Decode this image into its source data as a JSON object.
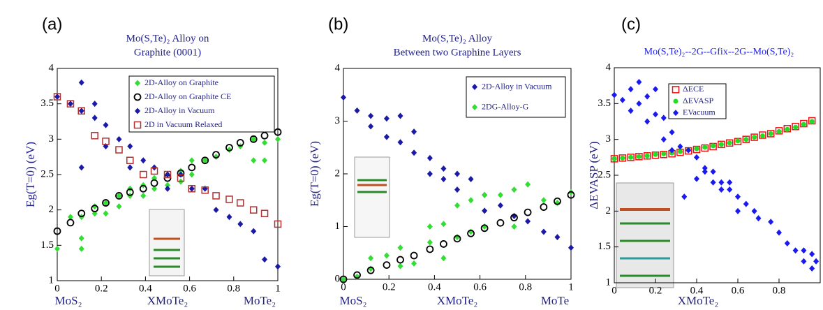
{
  "chart_data": [
    {
      "type": "scatter",
      "panel_label": "(a)",
      "title": [
        "Mo(S,Te)₂ Alloy on",
        "Graphite (0001)"
      ],
      "x_label": "XMoTe₂",
      "y_label": "Eg(T=0) (eV)",
      "x_end_labels": [
        "MoS₂",
        "MoTe₂"
      ],
      "xlim": [
        0,
        1
      ],
      "ylim": [
        1,
        4
      ],
      "xticks": [
        0,
        0.2,
        0.4,
        0.6,
        0.8,
        1
      ],
      "yticks": [
        1,
        1.5,
        2,
        2.5,
        3,
        3.5,
        4
      ],
      "series": [
        {
          "name": "2D-Alloy on Graphite",
          "color": "#33dd33",
          "marker": "diamond",
          "x": [
            0,
            0.06,
            0.11,
            0.11,
            0.11,
            0.17,
            0.17,
            0.22,
            0.22,
            0.28,
            0.28,
            0.33,
            0.33,
            0.39,
            0.39,
            0.44,
            0.44,
            0.5,
            0.5,
            0.56,
            0.56,
            0.61,
            0.61,
            0.67,
            0.72,
            0.78,
            0.83,
            0.89,
            0.89,
            0.94,
            0.94,
            1
          ],
          "y": [
            1.45,
            1.9,
            1.45,
            1.6,
            1.9,
            1.95,
            2.05,
            2.1,
            1.95,
            2.05,
            2.2,
            2.2,
            2.3,
            2.2,
            2.35,
            2.3,
            2.45,
            2.35,
            2.5,
            2.4,
            2.55,
            2.5,
            2.7,
            2.7,
            2.75,
            2.85,
            2.9,
            3.0,
            2.7,
            2.95,
            2.7,
            3.0
          ]
        },
        {
          "name": "2D-Alloy on Graphite CE",
          "color": "#000000",
          "marker": "circle_open",
          "x": [
            0,
            0.06,
            0.11,
            0.17,
            0.22,
            0.28,
            0.33,
            0.39,
            0.44,
            0.5,
            0.56,
            0.61,
            0.67,
            0.72,
            0.78,
            0.83,
            0.89,
            0.94,
            1
          ],
          "y": [
            1.7,
            1.82,
            1.95,
            2.02,
            2.1,
            2.2,
            2.25,
            2.3,
            2.38,
            2.45,
            2.52,
            2.6,
            2.7,
            2.78,
            2.88,
            2.95,
            3.0,
            3.05,
            3.1
          ]
        },
        {
          "name": "2D-Alloy in Vacuum",
          "color": "#1a1aa6",
          "marker": "diamond",
          "x": [
            0,
            0.06,
            0.11,
            0.11,
            0.11,
            0.17,
            0.17,
            0.22,
            0.22,
            0.28,
            0.33,
            0.33,
            0.39,
            0.44,
            0.5,
            0.5,
            0.56,
            0.61,
            0.67,
            0.72,
            0.78,
            0.83,
            0.89,
            0.94,
            1
          ],
          "y": [
            3.6,
            3.5,
            3.8,
            3.4,
            2.6,
            3.5,
            3.3,
            3.2,
            2.9,
            3.0,
            2.9,
            2.6,
            2.7,
            2.6,
            2.5,
            2.3,
            2.5,
            2.3,
            2.3,
            2.0,
            1.9,
            1.8,
            1.7,
            1.3,
            1.2
          ]
        },
        {
          "name": "2D in Vacuum Relaxed",
          "color": "#b03030",
          "marker": "square_open",
          "x": [
            0,
            0.06,
            0.11,
            0.17,
            0.22,
            0.28,
            0.33,
            0.39,
            0.44,
            0.5,
            0.56,
            0.61,
            0.67,
            0.72,
            0.78,
            0.83,
            0.89,
            0.94,
            1
          ],
          "y": [
            3.6,
            3.5,
            3.4,
            3.05,
            2.97,
            2.85,
            2.7,
            2.5,
            2.55,
            2.5,
            2.45,
            2.3,
            2.28,
            2.2,
            2.15,
            2.1,
            2.0,
            1.95,
            1.8
          ]
        }
      ]
    },
    {
      "type": "scatter",
      "panel_label": "(b)",
      "title": [
        "Mo(S,Te)₂ Alloy",
        "Between two Graphine Layers"
      ],
      "x_label": "XMoTe₂",
      "y_label": "Eg(T=0) (eV)",
      "x_end_labels": [
        "MoS₂",
        "MoTe"
      ],
      "xlim": [
        0,
        1
      ],
      "ylim": [
        0,
        4
      ],
      "xticks": [
        0,
        0.2,
        0.4,
        0.6,
        0.8,
        1
      ],
      "yticks": [
        0,
        1,
        2,
        3,
        4
      ],
      "series": [
        {
          "name": "2D-Alloy in Vacuum",
          "color": "#1a1aa6",
          "marker": "diamond",
          "x": [
            0,
            0.06,
            0.12,
            0.12,
            0.19,
            0.19,
            0.25,
            0.25,
            0.31,
            0.31,
            0.38,
            0.38,
            0.44,
            0.44,
            0.5,
            0.5,
            0.56,
            0.62,
            0.62,
            0.69,
            0.75,
            0.81,
            0.88,
            0.94,
            1
          ],
          "y": [
            3.45,
            3.2,
            3.1,
            2.9,
            3.05,
            2.7,
            3.1,
            2.6,
            2.4,
            2.8,
            2.3,
            2.0,
            2.1,
            1.9,
            1.7,
            2.0,
            1.9,
            1.6,
            1.3,
            1.4,
            1.2,
            1.1,
            0.9,
            0.8,
            0.6
          ]
        },
        {
          "name": "2DG-Alloy-G",
          "color": "#33dd33",
          "marker": "diamond",
          "x": [
            0,
            0.06,
            0.12,
            0.12,
            0.19,
            0.25,
            0.25,
            0.31,
            0.38,
            0.38,
            0.44,
            0.44,
            0.5,
            0.5,
            0.56,
            0.56,
            0.62,
            0.62,
            0.69,
            0.75,
            0.75,
            0.81,
            0.88,
            0.94,
            1
          ],
          "y": [
            0,
            0.05,
            0.4,
            0.2,
            0.45,
            0.6,
            0.25,
            0.3,
            0.7,
            1.0,
            0.4,
            1.05,
            0.8,
            1.4,
            1.5,
            0.9,
            1.0,
            1.6,
            1.6,
            1.7,
            1.0,
            1.8,
            1.5,
            1.45,
            1.65
          ]
        },
        {
          "color": "#000000",
          "marker": "circle_open",
          "x": [
            0,
            0.06,
            0.12,
            0.19,
            0.25,
            0.31,
            0.38,
            0.44,
            0.5,
            0.56,
            0.62,
            0.69,
            0.75,
            0.81,
            0.88,
            0.94,
            1
          ],
          "y": [
            0,
            0.08,
            0.17,
            0.27,
            0.37,
            0.45,
            0.57,
            0.67,
            0.77,
            0.87,
            0.97,
            1.07,
            1.17,
            1.27,
            1.37,
            1.48,
            1.6
          ]
        }
      ]
    },
    {
      "type": "scatter",
      "panel_label": "(c)",
      "title": [
        "Mo(S,Te)₂--2G--Gfix--2G--Mo(S,Te)₂"
      ],
      "x_label": "XMoTe₂",
      "y_label": "ΔEVASP (eV)",
      "xlim": [
        0,
        1
      ],
      "ylim": [
        1,
        4
      ],
      "xticks": [
        0,
        0.2,
        0.4,
        0.6,
        0.8
      ],
      "yticks": [
        1,
        1.5,
        2,
        2.5,
        3,
        3.5,
        4
      ],
      "series": [
        {
          "name": "ΔECE",
          "color": "#ee1111",
          "marker": "square_open",
          "x": [
            0,
            0.04,
            0.08,
            0.12,
            0.16,
            0.2,
            0.24,
            0.28,
            0.32,
            0.36,
            0.4,
            0.44,
            0.48,
            0.52,
            0.56,
            0.6,
            0.64,
            0.68,
            0.72,
            0.76,
            0.8,
            0.84,
            0.88,
            0.92,
            0.96
          ],
          "y": [
            2.73,
            2.74,
            2.75,
            2.76,
            2.77,
            2.78,
            2.79,
            2.8,
            2.82,
            2.84,
            2.86,
            2.88,
            2.9,
            2.93,
            2.95,
            2.97,
            3.0,
            3.03,
            3.06,
            3.08,
            3.12,
            3.15,
            3.18,
            3.22,
            3.26
          ]
        },
        {
          "name": "ΔEVASP",
          "color": "#22dd22",
          "marker": "circle",
          "x": [
            0,
            0.04,
            0.08,
            0.12,
            0.16,
            0.2,
            0.24,
            0.28,
            0.32,
            0.36,
            0.4,
            0.44,
            0.48,
            0.52,
            0.56,
            0.6,
            0.64,
            0.68,
            0.72,
            0.76,
            0.8,
            0.84,
            0.88,
            0.92,
            0.96
          ],
          "y": [
            2.73,
            2.74,
            2.75,
            2.76,
            2.77,
            2.79,
            2.8,
            2.81,
            2.83,
            2.85,
            2.87,
            2.89,
            2.91,
            2.93,
            2.95,
            2.98,
            3.0,
            3.03,
            3.05,
            3.08,
            3.11,
            3.14,
            3.17,
            3.21,
            3.25
          ]
        },
        {
          "name": "EVacuum",
          "color": "#1a1aee",
          "marker": "diamond",
          "x": [
            0,
            0.04,
            0.08,
            0.08,
            0.12,
            0.12,
            0.16,
            0.16,
            0.2,
            0.2,
            0.24,
            0.24,
            0.28,
            0.28,
            0.32,
            0.34,
            0.36,
            0.4,
            0.4,
            0.44,
            0.44,
            0.48,
            0.48,
            0.52,
            0.52,
            0.56,
            0.56,
            0.6,
            0.6,
            0.64,
            0.68,
            0.7,
            0.76,
            0.8,
            0.84,
            0.88,
            0.92,
            0.92,
            0.96,
            0.96,
            0.98
          ],
          "y": [
            3.62,
            3.55,
            3.7,
            3.4,
            3.8,
            3.5,
            3.6,
            3.25,
            3.7,
            3.35,
            3.3,
            3.0,
            3.1,
            2.85,
            2.9,
            2.2,
            2.85,
            2.75,
            2.45,
            2.6,
            2.55,
            2.55,
            2.4,
            2.4,
            2.3,
            2.3,
            2.4,
            2.2,
            2.0,
            2.1,
            2.0,
            1.9,
            1.85,
            1.7,
            1.55,
            1.45,
            1.3,
            1.45,
            1.2,
            1.4,
            1.3
          ]
        }
      ]
    }
  ]
}
